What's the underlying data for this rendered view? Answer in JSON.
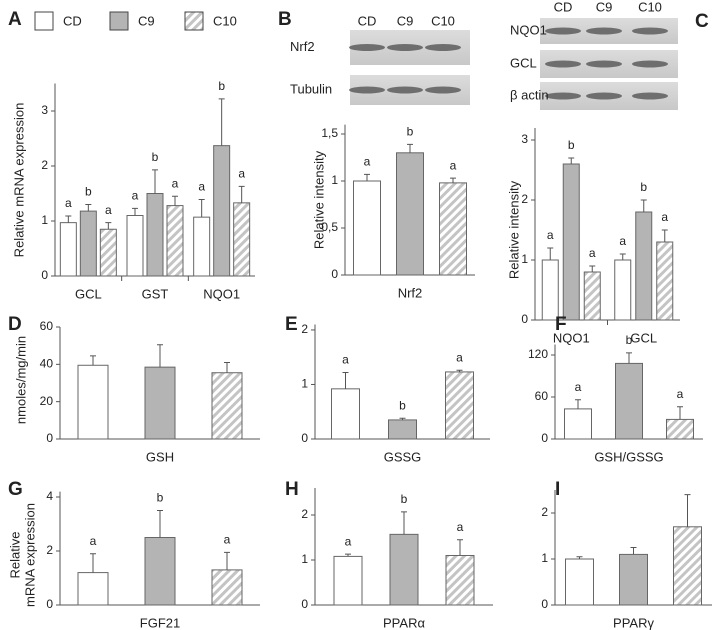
{
  "chart_data": [
    {
      "type": "bar",
      "panel": "A",
      "categories": [
        "GCL",
        "GST",
        "NQO1"
      ],
      "ylabel": "Relative mRNA expression",
      "ylim": [
        0,
        3.5
      ],
      "yticks": [
        0,
        1,
        2,
        3
      ],
      "series": [
        {
          "name": "CD",
          "color": "#ffffff",
          "values": [
            0.97,
            1.1,
            1.07
          ],
          "errors": [
            0.12,
            0.13,
            0.32
          ],
          "letters": [
            "a",
            "a",
            "a"
          ]
        },
        {
          "name": "C9",
          "color": "#b4b4b4",
          "values": [
            1.18,
            1.5,
            2.37
          ],
          "errors": [
            0.12,
            0.43,
            0.85
          ],
          "letters": [
            "b",
            "b",
            "b"
          ]
        },
        {
          "name": "C10",
          "color": "#c4c4c4",
          "hatch": true,
          "values": [
            0.85,
            1.28,
            1.33
          ],
          "errors": [
            0.12,
            0.17,
            0.3
          ],
          "letters": [
            "a",
            "a",
            "a"
          ]
        }
      ]
    },
    {
      "type": "bar",
      "panel": "B",
      "lanes": [
        "CD",
        "C9",
        "C10"
      ],
      "blot_rows": [
        "Nrf2",
        "Tubulin"
      ],
      "categories": [
        "Nrf2"
      ],
      "ylabel": "Relative intensity",
      "ylim": [
        0,
        1.6
      ],
      "yticks": [
        0,
        {
          "value": 0.5,
          "label": "0,5"
        },
        1,
        {
          "value": 1.5,
          "label": "1,5"
        }
      ],
      "series": [
        {
          "color": "#ffffff",
          "values": [
            1.0
          ],
          "errors": [
            0.07
          ],
          "letters": [
            "a"
          ]
        },
        {
          "color": "#b4b4b4",
          "values": [
            1.3
          ],
          "errors": [
            0.09
          ],
          "letters": [
            "b"
          ]
        },
        {
          "color": "#c4c4c4",
          "hatch": true,
          "values": [
            0.98
          ],
          "errors": [
            0.05
          ],
          "letters": [
            "a"
          ]
        }
      ]
    },
    {
      "type": "bar",
      "panel": "C",
      "lanes": [
        "CD",
        "C9",
        "C10"
      ],
      "blot_rows": [
        "NQO1",
        "GCL",
        "β actin"
      ],
      "categories": [
        "NQO1",
        "GCL"
      ],
      "ylabel": "Relative intensity",
      "ylim": [
        0,
        3.2
      ],
      "yticks": [
        0,
        1,
        2,
        3
      ],
      "series": [
        {
          "color": "#ffffff",
          "values": [
            1.0,
            1.0
          ],
          "errors": [
            0.2,
            0.1
          ],
          "letters": [
            "a",
            "a"
          ]
        },
        {
          "color": "#b4b4b4",
          "values": [
            2.6,
            1.8
          ],
          "errors": [
            0.1,
            0.2
          ],
          "letters": [
            "b",
            "b"
          ]
        },
        {
          "color": "#c4c4c4",
          "hatch": true,
          "values": [
            0.8,
            1.3
          ],
          "errors": [
            0.1,
            0.2
          ],
          "letters": [
            "a",
            "a"
          ]
        }
      ]
    },
    {
      "type": "bar",
      "panel": "D",
      "categories": [
        "GSH"
      ],
      "ylabel": "nmoles/mg/min",
      "ylim": [
        0,
        60
      ],
      "yticks": [
        0,
        20,
        40,
        60
      ],
      "series": [
        {
          "color": "#ffffff",
          "values": [
            39.5
          ],
          "errors": [
            5
          ]
        },
        {
          "color": "#b4b4b4",
          "values": [
            38.5
          ],
          "errors": [
            12
          ]
        },
        {
          "color": "#c4c4c4",
          "hatch": true,
          "values": [
            35.5
          ],
          "errors": [
            5.5
          ]
        }
      ]
    },
    {
      "type": "bar",
      "panel": "E",
      "categories": [
        "GSSG"
      ],
      "ylim": [
        0,
        2.1
      ],
      "yticks": [
        0,
        1,
        2
      ],
      "series": [
        {
          "color": "#ffffff",
          "values": [
            0.92
          ],
          "errors": [
            0.3
          ],
          "letters": [
            "a"
          ]
        },
        {
          "color": "#b4b4b4",
          "values": [
            0.35
          ],
          "errors": [
            0.03
          ],
          "letters": [
            "b"
          ]
        },
        {
          "color": "#c4c4c4",
          "hatch": true,
          "values": [
            1.23
          ],
          "errors": [
            0.03
          ],
          "letters": [
            "a"
          ]
        }
      ]
    },
    {
      "type": "bar",
      "panel": "F",
      "categories": [
        "GSH/GSSG"
      ],
      "ylim": [
        0,
        135
      ],
      "yticks": [
        0,
        60,
        120
      ],
      "series": [
        {
          "color": "#ffffff",
          "values": [
            43
          ],
          "errors": [
            13
          ],
          "letters": [
            "a"
          ]
        },
        {
          "color": "#b4b4b4",
          "values": [
            108
          ],
          "errors": [
            15
          ],
          "letters": [
            "b"
          ]
        },
        {
          "color": "#c4c4c4",
          "hatch": true,
          "values": [
            28
          ],
          "errors": [
            18
          ],
          "letters": [
            "a"
          ]
        }
      ]
    },
    {
      "type": "bar",
      "panel": "G",
      "categories": [
        "FGF21"
      ],
      "ylabel": [
        "Relative",
        "mRNA expression"
      ],
      "ylim": [
        0,
        4.2
      ],
      "yticks": [
        0,
        2,
        4
      ],
      "series": [
        {
          "color": "#ffffff",
          "values": [
            1.2
          ],
          "errors": [
            0.7
          ],
          "letters": [
            "a"
          ]
        },
        {
          "color": "#b4b4b4",
          "values": [
            2.5
          ],
          "errors": [
            1.0
          ],
          "letters": [
            "b"
          ]
        },
        {
          "color": "#c4c4c4",
          "hatch": true,
          "values": [
            1.3
          ],
          "errors": [
            0.65
          ],
          "letters": [
            "a"
          ]
        }
      ]
    },
    {
      "type": "bar",
      "panel": "H",
      "categories": [
        "PPARα"
      ],
      "ylim": [
        0,
        2.6
      ],
      "yticks": [
        0,
        1,
        2
      ],
      "series": [
        {
          "color": "#ffffff",
          "values": [
            1.08
          ],
          "errors": [
            0.05
          ],
          "letters": [
            "a"
          ]
        },
        {
          "color": "#b4b4b4",
          "values": [
            1.57
          ],
          "errors": [
            0.5
          ],
          "letters": [
            "b"
          ]
        },
        {
          "color": "#c4c4c4",
          "hatch": true,
          "values": [
            1.1
          ],
          "errors": [
            0.35
          ],
          "letters": [
            "a"
          ]
        }
      ]
    },
    {
      "type": "bar",
      "panel": "I",
      "categories": [
        "PPARγ"
      ],
      "ylim": [
        0,
        2.5
      ],
      "yticks": [
        0,
        1,
        2
      ],
      "series": [
        {
          "color": "#ffffff",
          "values": [
            1.0
          ],
          "errors": [
            0.05
          ]
        },
        {
          "color": "#b4b4b4",
          "values": [
            1.1
          ],
          "errors": [
            0.15
          ]
        },
        {
          "color": "#c4c4c4",
          "hatch": true,
          "values": [
            1.7
          ],
          "errors": [
            0.7
          ]
        }
      ]
    }
  ]
}
